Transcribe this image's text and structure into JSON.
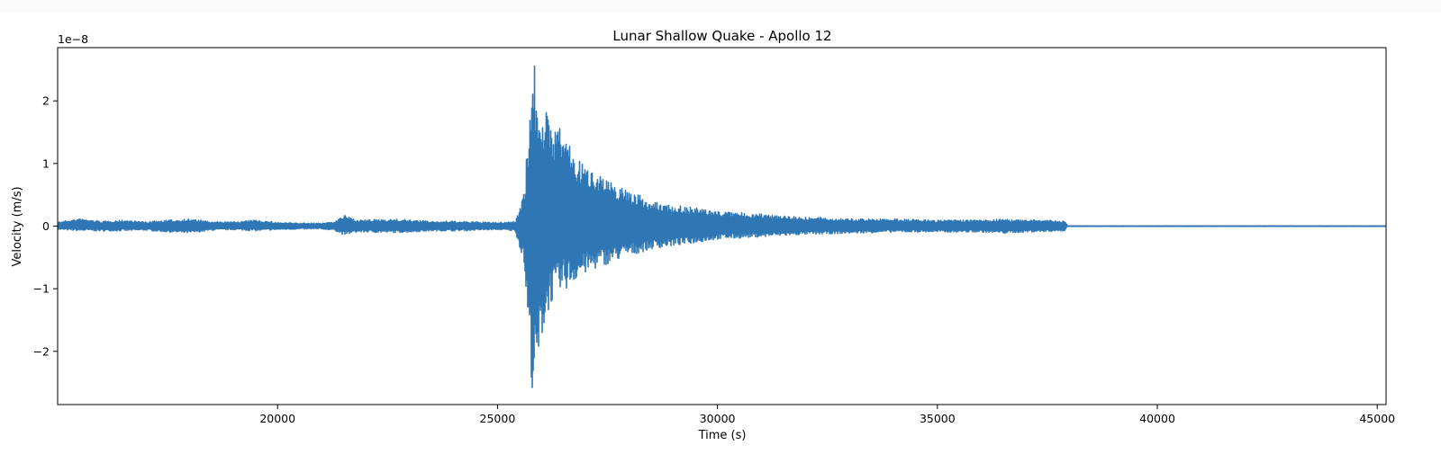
{
  "chart_data": {
    "type": "line",
    "title": "Lunar Shallow Quake - Apollo 12",
    "xlabel": "Time (s)",
    "ylabel": "Velocity (m/s)",
    "y_offset_label": "1e−8",
    "xlim": [
      15000,
      45200
    ],
    "ylim": [
      -2.85,
      2.85
    ],
    "x_ticks": [
      20000,
      25000,
      30000,
      35000,
      40000,
      45000
    ],
    "x_tick_labels": [
      "20000",
      "25000",
      "30000",
      "35000",
      "40000",
      "45000"
    ],
    "y_ticks": [
      -2,
      -1,
      0,
      1,
      2
    ],
    "y_tick_labels": [
      "−2",
      "−1",
      "0",
      "1",
      "2"
    ],
    "grid": false,
    "legend": "none",
    "series": [
      {
        "color": "#2f77b4",
        "envelope": {
          "x": [
            15000,
            15500,
            16000,
            16500,
            17000,
            17500,
            18000,
            18500,
            19000,
            19500,
            20000,
            20500,
            21000,
            21300,
            21500,
            21800,
            22000,
            22500,
            23000,
            23500,
            24000,
            24500,
            25000,
            25400,
            25600,
            25800,
            25900,
            26000,
            26200,
            26500,
            26800,
            27000,
            27300,
            27600,
            28000,
            28500,
            29000,
            29500,
            30000,
            31000,
            32000,
            33000,
            34000,
            35000,
            36000,
            36500,
            37000,
            37500,
            37900,
            37950,
            45200
          ],
          "upper": [
            0.07,
            0.12,
            0.08,
            0.1,
            0.07,
            0.1,
            0.12,
            0.07,
            0.07,
            0.1,
            0.06,
            0.05,
            0.05,
            0.08,
            0.18,
            0.1,
            0.1,
            0.12,
            0.1,
            0.08,
            0.08,
            0.07,
            0.06,
            0.08,
            0.6,
            2.85,
            2.3,
            2.1,
            1.7,
            1.6,
            1.1,
            1.0,
            0.9,
            0.7,
            0.6,
            0.4,
            0.35,
            0.3,
            0.25,
            0.2,
            0.15,
            0.12,
            0.12,
            0.1,
            0.1,
            0.12,
            0.1,
            0.1,
            0.08,
            0.005,
            0.005
          ],
          "lower": [
            -0.06,
            -0.08,
            -0.08,
            -0.08,
            -0.07,
            -0.1,
            -0.12,
            -0.07,
            -0.06,
            -0.08,
            -0.06,
            -0.05,
            -0.05,
            -0.07,
            -0.15,
            -0.1,
            -0.1,
            -0.11,
            -0.1,
            -0.08,
            -0.08,
            -0.07,
            -0.06,
            -0.08,
            -0.6,
            -2.85,
            -2.5,
            -1.9,
            -1.3,
            -1.1,
            -0.9,
            -0.8,
            -0.7,
            -0.6,
            -0.5,
            -0.38,
            -0.33,
            -0.28,
            -0.22,
            -0.18,
            -0.14,
            -0.12,
            -0.1,
            -0.1,
            -0.1,
            -0.12,
            -0.1,
            -0.09,
            -0.08,
            -0.005,
            -0.005
          ]
        }
      }
    ]
  }
}
